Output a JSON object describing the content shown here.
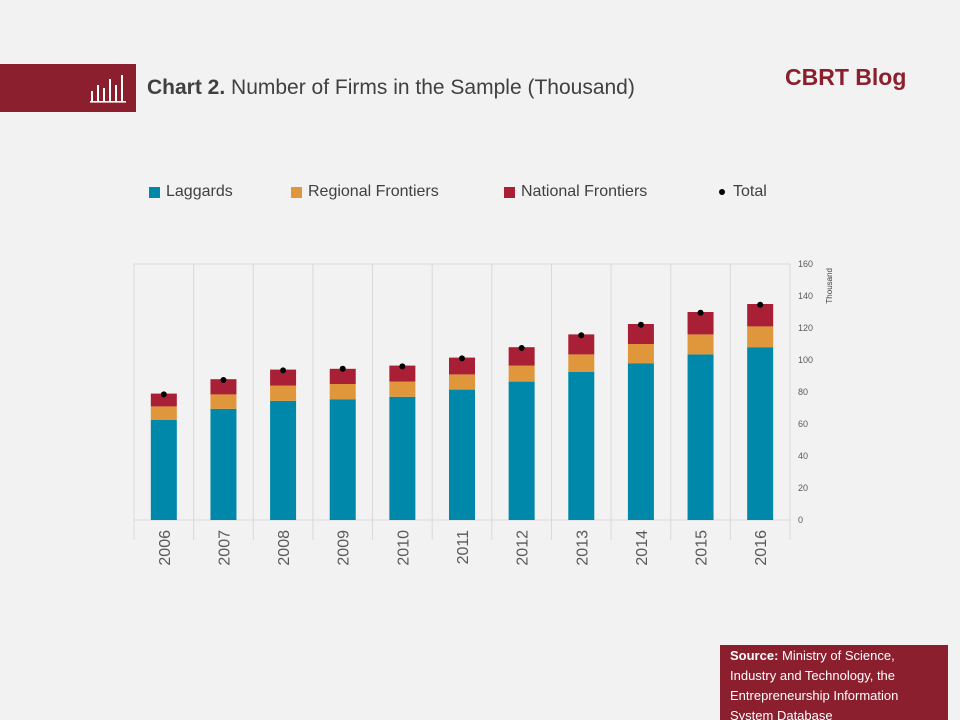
{
  "header": {
    "chart_number": "Chart 2.",
    "chart_title": "Number of Firms in the Sample (Thousand)",
    "brand": "CBRT Blog",
    "icon": "bar-chart-icon"
  },
  "legend": {
    "items": [
      {
        "label": "Laggards",
        "color": "#0088aa",
        "marker": "square"
      },
      {
        "label": "Regional Frontiers",
        "color": "#e0963a",
        "marker": "square"
      },
      {
        "label": "National Frontiers",
        "color": "#a91f36",
        "marker": "square"
      },
      {
        "label": "Total",
        "color": "#000000",
        "marker": "dot"
      }
    ]
  },
  "chart_data": {
    "type": "bar",
    "stacked": true,
    "categories": [
      "2006",
      "2007",
      "2008",
      "2009",
      "2010",
      "2011",
      "2012",
      "2013",
      "2014",
      "2015",
      "2016"
    ],
    "series": [
      {
        "name": "Laggards",
        "color": "#0088aa",
        "values": [
          62.5,
          69.5,
          74.5,
          75.5,
          77,
          81.5,
          86.5,
          92.5,
          98,
          103.5,
          108
        ]
      },
      {
        "name": "Regional Frontiers",
        "color": "#e0963a",
        "values": [
          8.5,
          9,
          9.5,
          9.5,
          9.5,
          9.5,
          10,
          11,
          12,
          12.5,
          13
        ]
      },
      {
        "name": "National Frontiers",
        "color": "#a91f36",
        "values": [
          8,
          9.5,
          10,
          9.5,
          10,
          10.5,
          11.5,
          12.5,
          12.5,
          14,
          14
        ]
      }
    ],
    "total": {
      "name": "Total",
      "color": "#000000",
      "values": [
        78.5,
        87.5,
        93.5,
        94.5,
        96,
        101,
        107.5,
        115.5,
        122,
        129.5,
        134.5
      ]
    },
    "yaxis": {
      "position": "right",
      "label": "Thousand",
      "ylim": [
        0,
        160
      ],
      "ticks": [
        0,
        20,
        40,
        60,
        80,
        100,
        120,
        140,
        160
      ]
    },
    "grid": {
      "vertical": true,
      "horizontal": false
    },
    "legend_position": "top"
  },
  "source": {
    "label": "Source:",
    "text": "Ministry of Science, Industry and Technology, the Entrepreneurship Information System Database"
  }
}
